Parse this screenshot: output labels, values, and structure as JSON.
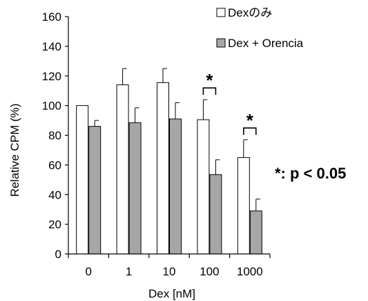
{
  "chart_data": {
    "type": "bar",
    "categories": [
      "0",
      "1",
      "10",
      "100",
      "1000"
    ],
    "series": [
      {
        "name": "Dexのみ",
        "color": "#ffffff",
        "values": [
          100,
          114,
          115.5,
          90.5,
          65
        ],
        "errors": [
          0,
          11,
          9.5,
          13.5,
          12
        ]
      },
      {
        "name": "Dex + Orencia",
        "color": "#a6a6a6",
        "values": [
          86,
          88.5,
          91,
          53.5,
          29
        ],
        "errors": [
          4,
          10,
          11,
          10,
          8
        ]
      }
    ],
    "xlabel": "Dex [nM]",
    "ylabel": "Relative CPM (%)",
    "ylim": [
      0,
      160
    ],
    "yticks": [
      0,
      20,
      40,
      60,
      80,
      100,
      120,
      140,
      160
    ],
    "grid": false,
    "legend_position": "top-right",
    "significance": [
      {
        "category_index": 3,
        "symbol": "*"
      },
      {
        "category_index": 4,
        "symbol": "*"
      }
    ],
    "annotation": "*: p < 0.05"
  }
}
